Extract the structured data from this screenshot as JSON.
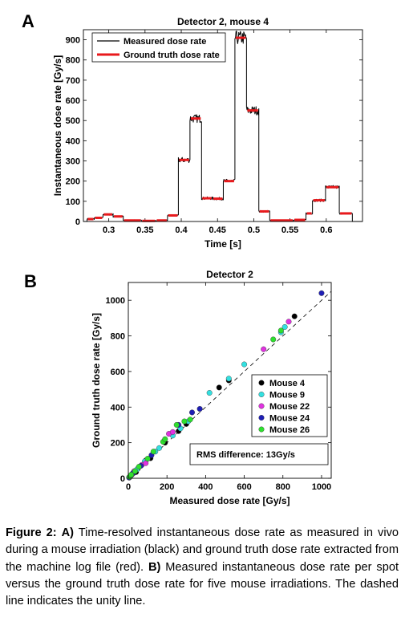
{
  "panels": {
    "a": "A",
    "b": "B"
  },
  "chart_data": [
    {
      "type": "line",
      "title": "Detector 2, mouse 4",
      "xlabel": "Time [s]",
      "ylabel": "Instantaneous dose rate [Gy/s]",
      "xlim": [
        0.265,
        0.65
      ],
      "ylim": [
        0,
        950
      ],
      "xticks": [
        0.3,
        0.35,
        0.4,
        0.45,
        0.5,
        0.55,
        0.6
      ],
      "xtick_labels": [
        "0.3",
        "0.35",
        "0.4",
        "0.45",
        "0.5",
        "0.55",
        "0.6"
      ],
      "yticks": [
        0,
        100,
        200,
        300,
        400,
        500,
        600,
        700,
        800,
        900
      ],
      "legend_position": "top-left",
      "series": [
        {
          "name": "Measured dose rate",
          "color": "#000000",
          "style": "noisy-step"
        },
        {
          "name": "Ground truth dose rate",
          "color": "#e8191c",
          "style": "step"
        }
      ],
      "spots": [
        {
          "t0": 0.27,
          "t1": 0.28,
          "value": 12
        },
        {
          "t0": 0.28,
          "t1": 0.292,
          "value": 18
        },
        {
          "t0": 0.292,
          "t1": 0.306,
          "value": 35
        },
        {
          "t0": 0.306,
          "t1": 0.32,
          "value": 25
        },
        {
          "t0": 0.32,
          "t1": 0.345,
          "value": 5
        },
        {
          "t0": 0.345,
          "t1": 0.365,
          "value": 3
        },
        {
          "t0": 0.365,
          "t1": 0.381,
          "value": 5
        },
        {
          "t0": 0.381,
          "t1": 0.396,
          "value": 30
        },
        {
          "t0": 0.396,
          "t1": 0.412,
          "value": 305
        },
        {
          "t0": 0.412,
          "t1": 0.428,
          "value": 510
        },
        {
          "t0": 0.428,
          "t1": 0.443,
          "value": 115
        },
        {
          "t0": 0.443,
          "t1": 0.458,
          "value": 113
        },
        {
          "t0": 0.458,
          "t1": 0.474,
          "value": 200
        },
        {
          "t0": 0.474,
          "t1": 0.49,
          "value": 910
        },
        {
          "t0": 0.49,
          "t1": 0.507,
          "value": 550
        },
        {
          "t0": 0.507,
          "t1": 0.522,
          "value": 50
        },
        {
          "t0": 0.522,
          "t1": 0.555,
          "value": 5
        },
        {
          "t0": 0.555,
          "t1": 0.572,
          "value": 8
        },
        {
          "t0": 0.572,
          "t1": 0.581,
          "value": 40
        },
        {
          "t0": 0.581,
          "t1": 0.599,
          "value": 105
        },
        {
          "t0": 0.599,
          "t1": 0.618,
          "value": 170
        },
        {
          "t0": 0.618,
          "t1": 0.636,
          "value": 40
        }
      ]
    },
    {
      "type": "scatter",
      "title": "Detector 2",
      "xlabel": "Measured dose rate [Gy/s]",
      "ylabel": "Ground truth dose rate [Gy/s]",
      "xlim": [
        0,
        1050
      ],
      "ylim": [
        0,
        1100
      ],
      "xticks": [
        0,
        200,
        400,
        600,
        800,
        1000
      ],
      "yticks": [
        0,
        200,
        400,
        600,
        800,
        1000
      ],
      "unity_line": true,
      "legend_position": "right",
      "annotation": "RMS difference: 13Gy/s",
      "series": [
        {
          "name": "Mouse 4",
          "color": "#000000",
          "points": [
            [
              5,
              5
            ],
            [
              10,
              12
            ],
            [
              18,
              20
            ],
            [
              28,
              30
            ],
            [
              40,
              35
            ],
            [
              50,
              55
            ],
            [
              90,
              100
            ],
            [
              115,
              113
            ],
            [
              190,
              200
            ],
            [
              260,
              265
            ],
            [
              300,
              305
            ],
            [
              470,
              510
            ],
            [
              520,
              550
            ],
            [
              860,
              910
            ]
          ]
        },
        {
          "name": "Mouse 9",
          "color": "#33e0e0",
          "points": [
            [
              5,
              6
            ],
            [
              12,
              15
            ],
            [
              20,
              25
            ],
            [
              45,
              50
            ],
            [
              85,
              95
            ],
            [
              140,
              150
            ],
            [
              160,
              170
            ],
            [
              230,
              240
            ],
            [
              270,
              280
            ],
            [
              310,
              320
            ],
            [
              420,
              480
            ],
            [
              520,
              560
            ],
            [
              600,
              640
            ],
            [
              790,
              820
            ],
            [
              810,
              850
            ]
          ]
        },
        {
          "name": "Mouse 22",
          "color": "#e032e0",
          "points": [
            [
              5,
              4
            ],
            [
              15,
              18
            ],
            [
              30,
              40
            ],
            [
              70,
              75
            ],
            [
              90,
              85
            ],
            [
              210,
              250
            ],
            [
              230,
              260
            ],
            [
              700,
              725
            ],
            [
              830,
              880
            ]
          ]
        },
        {
          "name": "Mouse 24",
          "color": "#1e1eb4",
          "points": [
            [
              4,
              4
            ],
            [
              12,
              14
            ],
            [
              25,
              30
            ],
            [
              65,
              70
            ],
            [
              120,
              130
            ],
            [
              260,
              300
            ],
            [
              330,
              370
            ],
            [
              370,
              390
            ],
            [
              1000,
              1040
            ]
          ]
        },
        {
          "name": "Mouse 26",
          "color": "#2ee02e",
          "points": [
            [
              6,
              8
            ],
            [
              15,
              20
            ],
            [
              35,
              40
            ],
            [
              55,
              65
            ],
            [
              100,
              110
            ],
            [
              130,
              150
            ],
            [
              180,
              205
            ],
            [
              190,
              220
            ],
            [
              250,
              300
            ],
            [
              290,
              320
            ],
            [
              320,
              330
            ],
            [
              750,
              780
            ],
            [
              790,
              830
            ]
          ]
        }
      ]
    }
  ],
  "caption": {
    "label": "Figure 2:",
    "a_label": "A)",
    "a_text": "Time-resolved instantaneous dose rate as measured in vivo during a mouse irradiation (black) and ground truth dose rate extracted from the machine log file (red).",
    "b_label": "B)",
    "b_text": "Measured instantaneous dose rate per spot versus the ground truth dose rate for five mouse irradiations. The dashed line indicates the unity line."
  }
}
